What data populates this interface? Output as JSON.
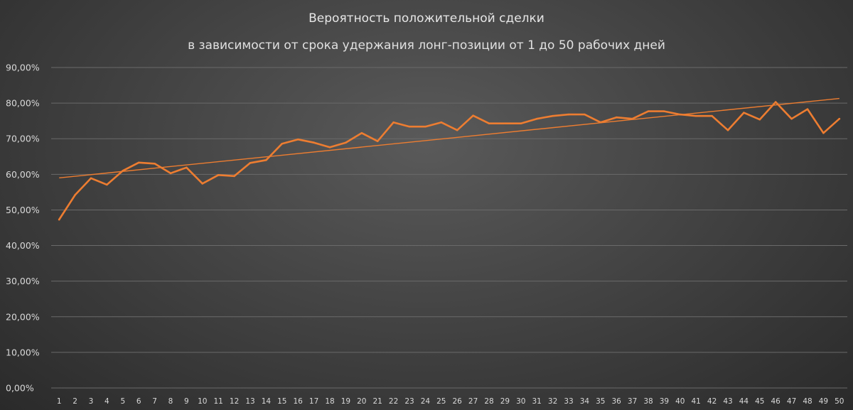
{
  "chart_data": {
    "type": "line",
    "title": "Вероятность положительной сделки",
    "subtitle": "в зависимости от срока удержания лонг-позиции от 1 до 50 рабочих дней",
    "xlabel": "",
    "ylabel": "",
    "ylim": [
      0,
      90
    ],
    "y_ticks": [
      "0,00%",
      "10,00%",
      "20,00%",
      "30,00%",
      "40,00%",
      "50,00%",
      "60,00%",
      "70,00%",
      "80,00%",
      "90,00%"
    ],
    "x": [
      1,
      2,
      3,
      4,
      5,
      6,
      7,
      8,
      9,
      10,
      11,
      12,
      13,
      14,
      15,
      16,
      17,
      18,
      19,
      20,
      21,
      22,
      23,
      24,
      25,
      26,
      27,
      28,
      29,
      30,
      31,
      32,
      33,
      34,
      35,
      36,
      37,
      38,
      39,
      40,
      41,
      42,
      43,
      44,
      45,
      46,
      47,
      48,
      49,
      50
    ],
    "grid": true,
    "legend": "none",
    "series": [
      {
        "color": "#ed7d31",
        "values": [
          47.3,
          54.2,
          58.9,
          57.1,
          61.0,
          63.3,
          63.0,
          60.3,
          61.9,
          57.4,
          59.8,
          59.5,
          63.2,
          64.0,
          68.6,
          69.8,
          68.9,
          67.6,
          68.9,
          71.6,
          69.3,
          74.6,
          73.4,
          73.4,
          74.6,
          72.4,
          76.5,
          74.3,
          74.3,
          74.3,
          75.6,
          76.4,
          76.8,
          76.8,
          74.6,
          76.0,
          75.6,
          77.7,
          77.7,
          76.8,
          76.4,
          76.4,
          72.4,
          77.3,
          75.4,
          80.3,
          75.6,
          78.3,
          71.6,
          75.6
        ]
      }
    ],
    "trendline": {
      "color": "#ed7d31",
      "start": 59.0,
      "end": 81.3
    },
    "colors": {
      "grid": "#6a6a6a",
      "text": "#d9d9d9"
    }
  }
}
